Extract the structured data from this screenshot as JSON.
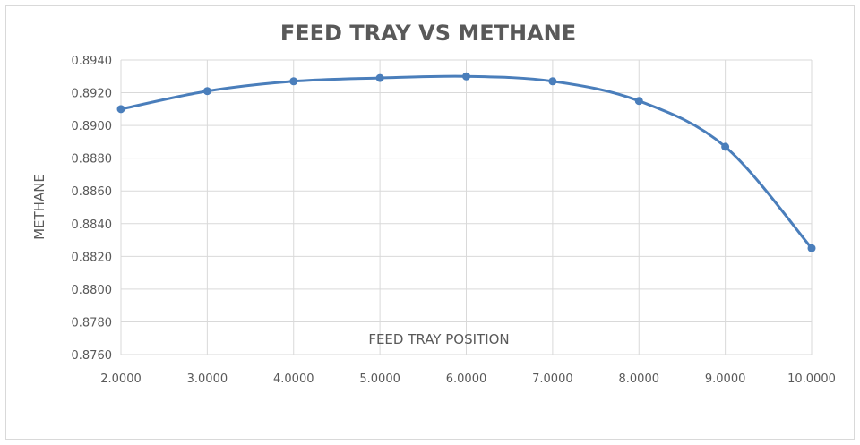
{
  "chart_data": {
    "type": "line",
    "title": "FEED TRAY VS METHANE",
    "xlabel": "FEED TRAY POSITION",
    "ylabel": "METHANE",
    "x": [
      2,
      3,
      4,
      5,
      6,
      7,
      8,
      9,
      10
    ],
    "x_tick_labels": [
      "2.0000",
      "3.0000",
      "4.0000",
      "5.0000",
      "6.0000",
      "7.0000",
      "8.0000",
      "9.0000",
      "10.0000"
    ],
    "y_tick_labels": [
      "0.8760",
      "0.8780",
      "0.8800",
      "0.8820",
      "0.8840",
      "0.8860",
      "0.8880",
      "0.8900",
      "0.8920",
      "0.8940"
    ],
    "xlim": [
      2,
      10
    ],
    "ylim": [
      0.876,
      0.894
    ],
    "grid": true,
    "series": [
      {
        "values": [
          0.891,
          0.8921,
          0.8927,
          0.8929,
          0.893,
          0.8927,
          0.8915,
          0.8887,
          0.8825
        ],
        "color": "#4a7ebb"
      }
    ]
  }
}
